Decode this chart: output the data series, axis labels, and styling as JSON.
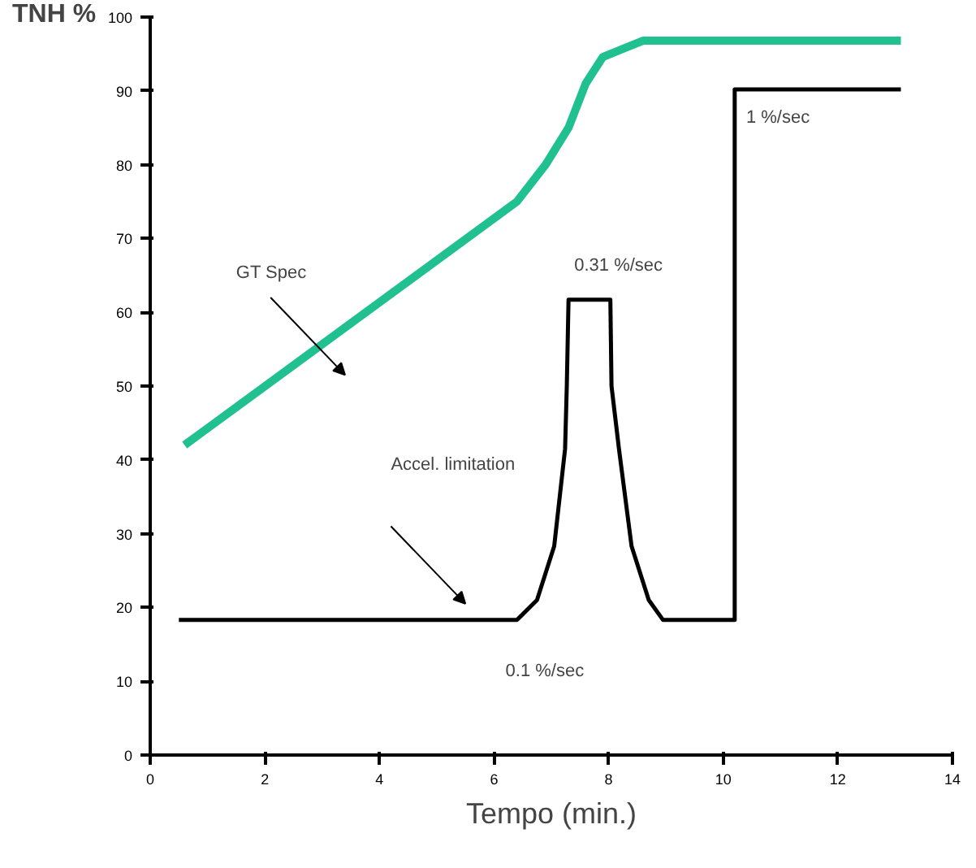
{
  "chart_data": {
    "type": "line",
    "ylabel": "TNH %",
    "xlabel": "Tempo (min.)",
    "xlim": [
      0,
      14
    ],
    "xticks": [
      0,
      2,
      4,
      6,
      8,
      10,
      12,
      14
    ],
    "ylim": [
      0,
      100
    ],
    "yticks": [
      0,
      10,
      20,
      30,
      40,
      50,
      60,
      70,
      80,
      90,
      100
    ],
    "grid": false,
    "marker": "none",
    "line_style": "solid",
    "series": [
      {
        "color": "#20c090",
        "x": [
          0.6,
          6.4,
          6.9,
          7.3,
          7.6,
          7.9,
          8.6,
          13.1
        ],
        "values": [
          42,
          75,
          80,
          85,
          91,
          94.6,
          96.8,
          96.8
        ]
      },
      {
        "color": "#000000",
        "x": [
          0.5,
          6.4,
          6.75,
          7.05,
          7.24,
          7.27,
          7.3,
          8.03,
          8.05,
          8.18,
          8.4,
          8.7,
          8.95,
          10.2,
          10.2,
          13.1
        ],
        "values": [
          18.3,
          18.3,
          21,
          28.3,
          41.5,
          50,
          61.7,
          61.7,
          50,
          41.5,
          28.3,
          21,
          18.3,
          18.3,
          90.2,
          90.2
        ]
      }
    ],
    "annotations": [
      "GT Spec",
      "Accel. limitation",
      "0.31 %/sec",
      "0.1 %/sec",
      "1 %/sec"
    ]
  }
}
